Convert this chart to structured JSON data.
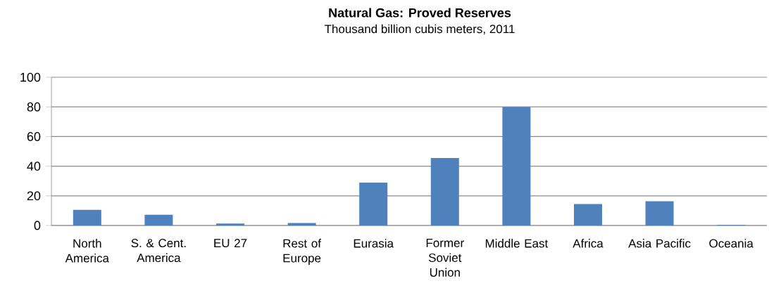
{
  "chart_data": {
    "type": "bar",
    "title": "Natural Gas: Proved Reserves",
    "subtitle": "Thousand billion cubis meters, 2011",
    "categories": [
      "North America",
      "S. & Cent. America",
      "EU 27",
      "Rest of Europe",
      "Eurasia",
      "Former Soviet Union",
      "Middle East",
      "Africa",
      "Asia Pacific",
      "Oceania"
    ],
    "values": [
      10.6,
      7.2,
      1.3,
      1.7,
      28.9,
      45.5,
      80.0,
      14.5,
      16.3,
      0.3
    ],
    "color": "#4f81bd",
    "ylim": [
      0,
      100
    ],
    "yticks": [
      0,
      20,
      40,
      60,
      80,
      100
    ],
    "grid": "y"
  }
}
